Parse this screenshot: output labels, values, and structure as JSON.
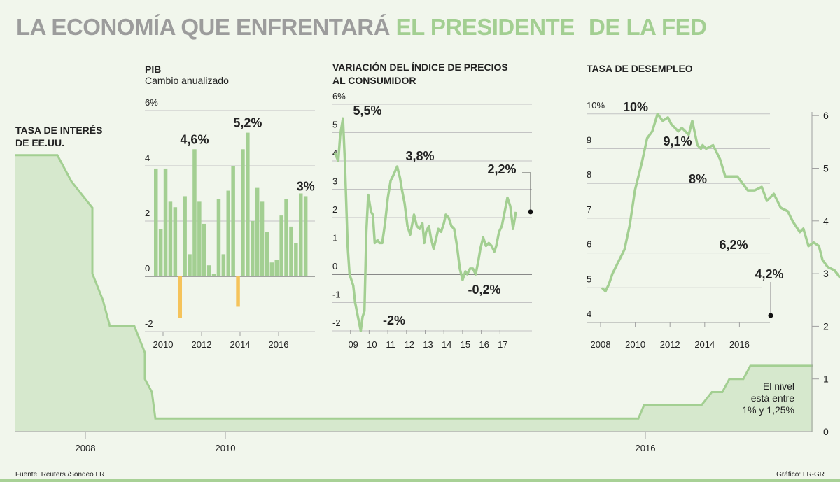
{
  "title": {
    "part1": "LA ECONOMÍA QUE ENFRENTARÁ",
    "part2": "EL PRESIDENTE",
    "part3": "DE LA FED"
  },
  "colors": {
    "green_line": "#a3cf92",
    "green_fill": "#d6e8cd",
    "orange": "#f5c35b",
    "grey_text": "#9c9c9c",
    "background": "#f1f6ec"
  },
  "footer": {
    "source": "Fuente: Reuters /Sondeo LR",
    "credit": "Gráfico: LR-GR"
  },
  "chart_data": [
    {
      "id": "interest",
      "type": "area",
      "title": "TASA DE INTERÉS DE EE.UU.",
      "annotation": [
        "El nivel",
        "está entre",
        "1% y 1,25%"
      ],
      "ylim": [
        0,
        6
      ],
      "yticks": [
        0,
        1,
        2,
        3,
        4,
        5,
        6
      ],
      "xticks": [
        {
          "v": 2008,
          "label": "2008"
        },
        {
          "v": 2010,
          "label": "2010"
        },
        {
          "v": 2016,
          "label": "2016"
        }
      ],
      "xlim": [
        2007.0,
        2018.4
      ],
      "points": [
        [
          2007.0,
          5.25
        ],
        [
          2007.6,
          5.25
        ],
        [
          2007.8,
          4.75
        ],
        [
          2007.95,
          4.5
        ],
        [
          2008.1,
          4.25
        ],
        [
          2008.1,
          3.0
        ],
        [
          2008.25,
          2.5
        ],
        [
          2008.35,
          2.0
        ],
        [
          2008.7,
          2.0
        ],
        [
          2008.85,
          1.5
        ],
        [
          2008.85,
          1.0
        ],
        [
          2008.95,
          0.75
        ],
        [
          2009.0,
          0.25
        ],
        [
          2015.9,
          0.25
        ],
        [
          2015.98,
          0.5
        ],
        [
          2016.8,
          0.5
        ],
        [
          2016.95,
          0.75
        ],
        [
          2017.1,
          0.75
        ],
        [
          2017.2,
          1.0
        ],
        [
          2017.4,
          1.0
        ],
        [
          2017.5,
          1.25
        ],
        [
          2018.4,
          1.25
        ]
      ]
    },
    {
      "id": "gdp",
      "type": "bar",
      "title": "PIB",
      "subtitle": "Cambio anualizado",
      "ylim": [
        -2,
        6
      ],
      "yticks": [
        {
          "v": -2,
          "label": "-2"
        },
        {
          "v": 0,
          "label": "0"
        },
        {
          "v": 2,
          "label": "2"
        },
        {
          "v": 4,
          "label": "4"
        },
        {
          "v": 6,
          "label": "6%"
        }
      ],
      "xticks": [
        "2010",
        "2012",
        "2014",
        "2016"
      ],
      "values": [
        3.9,
        1.7,
        3.9,
        2.7,
        2.5,
        -1.5,
        2.9,
        0.8,
        4.6,
        2.7,
        1.9,
        0.4,
        0.1,
        2.8,
        0.8,
        3.1,
        4.0,
        -1.1,
        4.6,
        5.2,
        2.0,
        3.2,
        2.7,
        1.6,
        0.5,
        0.6,
        2.2,
        2.8,
        1.8,
        1.2,
        3.0,
        2.9
      ],
      "labels": [
        {
          "i": 8,
          "text": "4,6%"
        },
        {
          "i": 19,
          "text": "5,2%"
        },
        {
          "i": 31,
          "text": "3%"
        }
      ]
    },
    {
      "id": "cpi",
      "type": "line",
      "title": "VARIACIÓN DEL ÍNDICE DE PRECIOS AL CONSUMIDOR",
      "ylim": [
        -2,
        6
      ],
      "yticks": [
        {
          "v": -2,
          "label": "-2"
        },
        {
          "v": -1,
          "label": "-1"
        },
        {
          "v": 0,
          "label": "0"
        },
        {
          "v": 1,
          "label": "1"
        },
        {
          "v": 2,
          "label": "2"
        },
        {
          "v": 3,
          "label": "3"
        },
        {
          "v": 4,
          "label": "4"
        },
        {
          "v": 5,
          "label": "5"
        },
        {
          "v": 6,
          "label": "6%"
        }
      ],
      "xticks": [
        "09",
        "10",
        "11",
        "12",
        "13",
        "14",
        "15",
        "16",
        "17"
      ],
      "x": [
        2008.0,
        2008.2,
        2008.3,
        2008.45,
        2008.55,
        2008.7,
        2008.8,
        2009.0,
        2009.1,
        2009.25,
        2009.4,
        2009.5,
        2009.6,
        2009.7,
        2009.8,
        2009.95,
        2010.05,
        2010.15,
        2010.3,
        2010.4,
        2010.55,
        2010.7,
        2010.85,
        2011.0,
        2011.15,
        2011.35,
        2011.5,
        2011.6,
        2011.75,
        2011.9,
        2012.05,
        2012.25,
        2012.4,
        2012.55,
        2012.7,
        2012.8,
        2012.9,
        2013.05,
        2013.15,
        2013.3,
        2013.45,
        2013.55,
        2013.7,
        2013.85,
        2013.95,
        2014.1,
        2014.25,
        2014.4,
        2014.55,
        2014.7,
        2014.85,
        2015.0,
        2015.1,
        2015.25,
        2015.4,
        2015.55,
        2015.7,
        2015.8,
        2015.95,
        2016.1,
        2016.25,
        2016.4,
        2016.55,
        2016.65,
        2016.8,
        2016.95,
        2017.1,
        2017.25,
        2017.4,
        2017.55,
        2017.7
      ],
      "values": [
        4.3,
        4.0,
        4.9,
        5.5,
        4.0,
        1.0,
        0.0,
        -0.4,
        -1.0,
        -1.5,
        -2.0,
        -1.5,
        -1.3,
        1.5,
        2.8,
        2.2,
        2.1,
        1.1,
        1.2,
        1.1,
        1.1,
        1.8,
        2.7,
        3.3,
        3.5,
        3.8,
        3.4,
        3.0,
        2.5,
        1.7,
        1.4,
        2.1,
        1.7,
        1.6,
        1.8,
        1.1,
        1.5,
        1.7,
        1.3,
        0.9,
        1.3,
        1.6,
        1.5,
        1.8,
        2.1,
        2.0,
        1.7,
        1.6,
        1.0,
        0.2,
        -0.2,
        0.1,
        0.0,
        0.2,
        0.2,
        0.0,
        0.5,
        0.9,
        1.3,
        1.0,
        1.1,
        1.0,
        0.8,
        1.0,
        1.5,
        1.7,
        2.2,
        2.7,
        2.4,
        1.6,
        2.2
      ],
      "labels": [
        {
          "text": "5,5%",
          "v": 5.5
        },
        {
          "text": "-2%",
          "v": -2
        },
        {
          "text": "3,8%",
          "v": 3.8
        },
        {
          "text": "-0,2%",
          "v": -0.2
        },
        {
          "text": "2,2%",
          "v": 2.2
        }
      ]
    },
    {
      "id": "unemployment",
      "type": "line",
      "title": "TASA DE DESEMPLEO",
      "ylim": [
        4,
        10
      ],
      "yticks": [
        {
          "v": 4,
          "label": "4"
        },
        {
          "v": 5,
          "label": "5"
        },
        {
          "v": 6,
          "label": "6"
        },
        {
          "v": 7,
          "label": "7"
        },
        {
          "v": 8,
          "label": "8"
        },
        {
          "v": 9,
          "label": "9"
        },
        {
          "v": 10,
          "label": "10%"
        }
      ],
      "xticks": [
        "2008",
        "2010",
        "2012",
        "2014",
        "2016"
      ],
      "x": [
        2008.0,
        2008.1,
        2008.2,
        2008.3,
        2008.5,
        2008.65,
        2008.8,
        2008.95,
        2009.15,
        2009.3,
        2009.45,
        2009.6,
        2009.75,
        2009.9,
        2010.0,
        2010.2,
        2010.3,
        2010.5,
        2010.6,
        2010.75,
        2010.85,
        2010.9,
        2011.0,
        2011.2,
        2011.4,
        2011.55,
        2011.7,
        2011.9,
        2012.2,
        2012.4,
        2012.6,
        2012.75,
        2012.85,
        2012.95,
        2013.05,
        2013.15,
        2013.35,
        2013.5,
        2013.7,
        2013.8,
        2013.95,
        2014.1,
        2014.25,
        2014.35,
        2014.5,
        2014.7,
        2014.85,
        2015.0,
        2015.15,
        2015.3,
        2015.5,
        2015.7,
        2015.85,
        2016.0,
        2016.15,
        2016.25,
        2016.35,
        2016.5,
        2016.7,
        2016.85,
        2016.95,
        2017.1,
        2017.25,
        2017.4,
        2017.55,
        2017.7
      ],
      "values": [
        5.0,
        4.9,
        5.1,
        5.4,
        5.8,
        6.1,
        6.8,
        7.8,
        8.6,
        9.3,
        9.5,
        10.0,
        9.8,
        9.9,
        9.7,
        9.5,
        9.6,
        9.4,
        9.8,
        9.1,
        9.0,
        9.1,
        9.0,
        9.1,
        8.7,
        8.2,
        8.2,
        8.2,
        7.8,
        7.8,
        7.9,
        7.5,
        7.6,
        7.7,
        7.5,
        7.3,
        7.2,
        6.9,
        6.6,
        6.7,
        6.2,
        6.3,
        6.2,
        5.8,
        5.6,
        5.5,
        5.3,
        5.3,
        5.0,
        5.0,
        5.0,
        4.9,
        5.0,
        4.9,
        4.7,
        4.9,
        4.8,
        4.9,
        4.7,
        4.6,
        4.5,
        4.6,
        4.4,
        4.2,
        4.3,
        4.2
      ],
      "labels": [
        {
          "text": "10%",
          "v": 10
        },
        {
          "text": "9,1%",
          "v": 9.1
        },
        {
          "text": "8%",
          "v": 8
        },
        {
          "text": "6,2%",
          "v": 6.2
        },
        {
          "text": "4,2%",
          "v": 4.2
        }
      ]
    }
  ]
}
